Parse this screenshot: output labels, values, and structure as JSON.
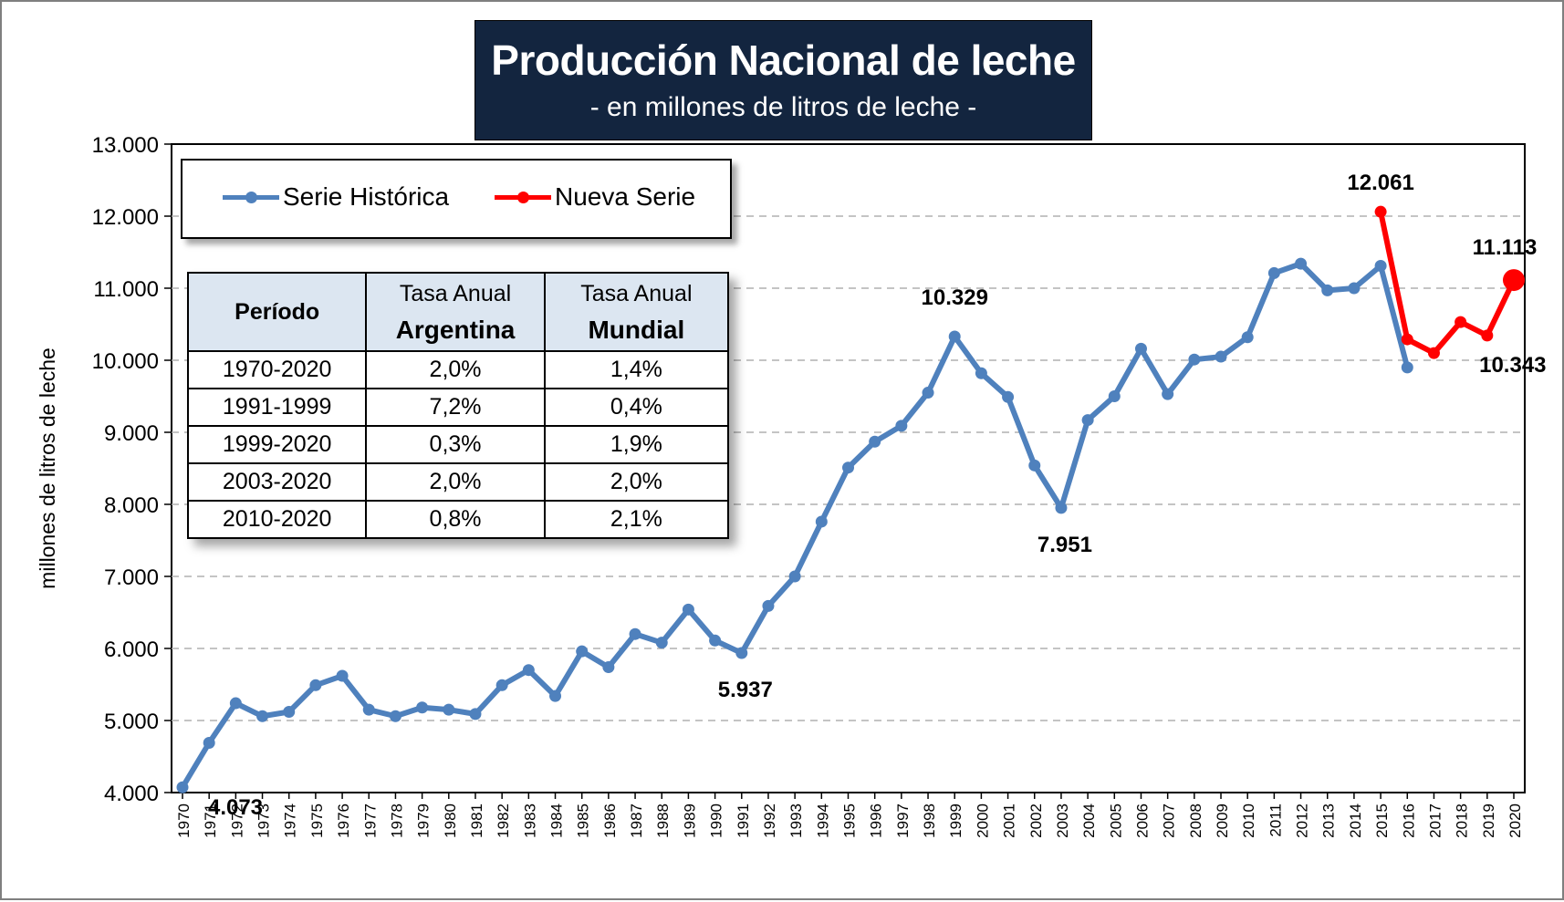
{
  "title": "Producción Nacional de leche",
  "subtitle": "- en millones de litros de leche -",
  "legend": {
    "historica": "Serie Histórica",
    "nueva": "Nueva Serie"
  },
  "colors": {
    "historica": "#4f81bd",
    "nueva": "#ff0000",
    "title_bg": "#13253f",
    "table_header_bg": "#dce6f1"
  },
  "table": {
    "headers": {
      "period": "Período",
      "arg_line1": "Tasa Anual",
      "arg_line2": "Argentina",
      "mun_line1": "Tasa Anual",
      "mun_line2": "Mundial"
    },
    "rows": [
      {
        "period": "1970-2020",
        "argentina": "2,0%",
        "mundial": "1,4%"
      },
      {
        "period": "1991-1999",
        "argentina": "7,2%",
        "mundial": "0,4%"
      },
      {
        "period": "1999-2020",
        "argentina": "0,3%",
        "mundial": "1,9%"
      },
      {
        "period": "2003-2020",
        "argentina": "2,0%",
        "mundial": "2,0%"
      },
      {
        "period": "2010-2020",
        "argentina": "0,8%",
        "mundial": "2,1%"
      }
    ]
  },
  "chart_data": {
    "type": "line",
    "ylabel": "millones de litros de leche",
    "ylim": [
      4000,
      13000
    ],
    "yticks": [
      4000,
      5000,
      6000,
      7000,
      8000,
      9000,
      10000,
      11000,
      12000,
      13000
    ],
    "ytick_labels": [
      "4.000",
      "5.000",
      "6.000",
      "7.000",
      "8.000",
      "9.000",
      "10.000",
      "11.000",
      "12.000",
      "13.000"
    ],
    "grid": "horizontal dashed",
    "legend_position": "top-left",
    "x": [
      1970,
      1971,
      1972,
      1973,
      1974,
      1975,
      1976,
      1977,
      1978,
      1979,
      1980,
      1981,
      1982,
      1983,
      1984,
      1985,
      1986,
      1987,
      1988,
      1989,
      1990,
      1991,
      1992,
      1993,
      1994,
      1995,
      1996,
      1997,
      1998,
      1999,
      2000,
      2001,
      2002,
      2003,
      2004,
      2005,
      2006,
      2007,
      2008,
      2009,
      2010,
      2011,
      2012,
      2013,
      2014,
      2015,
      2016,
      2017,
      2018,
      2019,
      2020
    ],
    "series": [
      {
        "name": "Serie Histórica",
        "x": [
          1970,
          1971,
          1972,
          1973,
          1974,
          1975,
          1976,
          1977,
          1978,
          1979,
          1980,
          1981,
          1982,
          1983,
          1984,
          1985,
          1986,
          1987,
          1988,
          1989,
          1990,
          1991,
          1992,
          1993,
          1994,
          1995,
          1996,
          1997,
          1998,
          1999,
          2000,
          2001,
          2002,
          2003,
          2004,
          2005,
          2006,
          2007,
          2008,
          2009,
          2010,
          2011,
          2012,
          2013,
          2014,
          2015,
          2016
        ],
        "values": [
          4073,
          4690,
          5240,
          5060,
          5120,
          5490,
          5620,
          5150,
          5060,
          5180,
          5150,
          5090,
          5490,
          5700,
          5340,
          5960,
          5740,
          6200,
          6080,
          6540,
          6110,
          5937,
          6590,
          7000,
          7760,
          8510,
          8870,
          9090,
          9550,
          10329,
          9820,
          9490,
          8540,
          7951,
          9170,
          9500,
          10160,
          9530,
          10010,
          10050,
          10320,
          11210,
          11340,
          10970,
          11000,
          11310,
          9900
        ]
      },
      {
        "name": "Nueva Serie",
        "x": [
          2015,
          2016,
          2017,
          2018,
          2019,
          2020
        ],
        "values": [
          12061,
          10290,
          10100,
          10530,
          10343,
          11113
        ]
      }
    ],
    "annotations": [
      {
        "x": 1970,
        "y": 4073,
        "label": "4.073"
      },
      {
        "x": 1991,
        "y": 5937,
        "label": "5.937"
      },
      {
        "x": 1999,
        "y": 10329,
        "label": "10.329"
      },
      {
        "x": 2003,
        "y": 7951,
        "label": "7.951"
      },
      {
        "x": 2015,
        "y": 12061,
        "label": "12.061"
      },
      {
        "x": 2019,
        "y": 10343,
        "label": "10.343"
      },
      {
        "x": 2020,
        "y": 11113,
        "label": "11.113"
      }
    ]
  }
}
